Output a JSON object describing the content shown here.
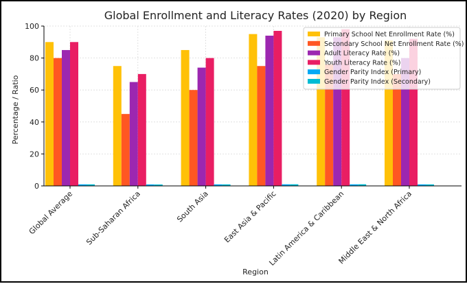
{
  "chart_data": {
    "type": "bar",
    "title": "Global Enrollment and Literacy Rates (2020) by Region",
    "xlabel": "Region",
    "ylabel": "Percentage / Ratio",
    "ylim": [
      0,
      100
    ],
    "yticks": [
      0,
      20,
      40,
      60,
      80,
      100
    ],
    "grid": true,
    "legend_position": "top-right",
    "categories": [
      "Global Average",
      "Sub-Saharan Africa",
      "South Asia",
      "East Asia & Pacific",
      "Latin America & Caribbean",
      "Middle East & North Africa"
    ],
    "series": [
      {
        "name": "Primary School Net Enrollment Rate (%)",
        "color": "#FFC107",
        "values": [
          90,
          75,
          85,
          95,
          93,
          91
        ]
      },
      {
        "name": "Secondary School Net Enrollment Rate (%)",
        "color": "#FF5722",
        "values": [
          80,
          45,
          60,
          75,
          76,
          70
        ]
      },
      {
        "name": "Adult Literacy Rate (%)",
        "color": "#9C27B0",
        "values": [
          85,
          65,
          74,
          94,
          93,
          80
        ]
      },
      {
        "name": "Youth Literacy Rate (%)",
        "color": "#E91E63",
        "values": [
          90,
          70,
          80,
          97,
          98,
          92
        ]
      },
      {
        "name": "Gender Parity Index (Primary)",
        "color": "#03A9F4",
        "values": [
          0.98,
          0.94,
          0.97,
          1.0,
          0.99,
          0.96
        ]
      },
      {
        "name": "Gender Parity Index (Secondary)",
        "color": "#00BCD4",
        "values": [
          0.97,
          0.89,
          0.95,
          1.01,
          1.02,
          0.94
        ]
      }
    ]
  }
}
